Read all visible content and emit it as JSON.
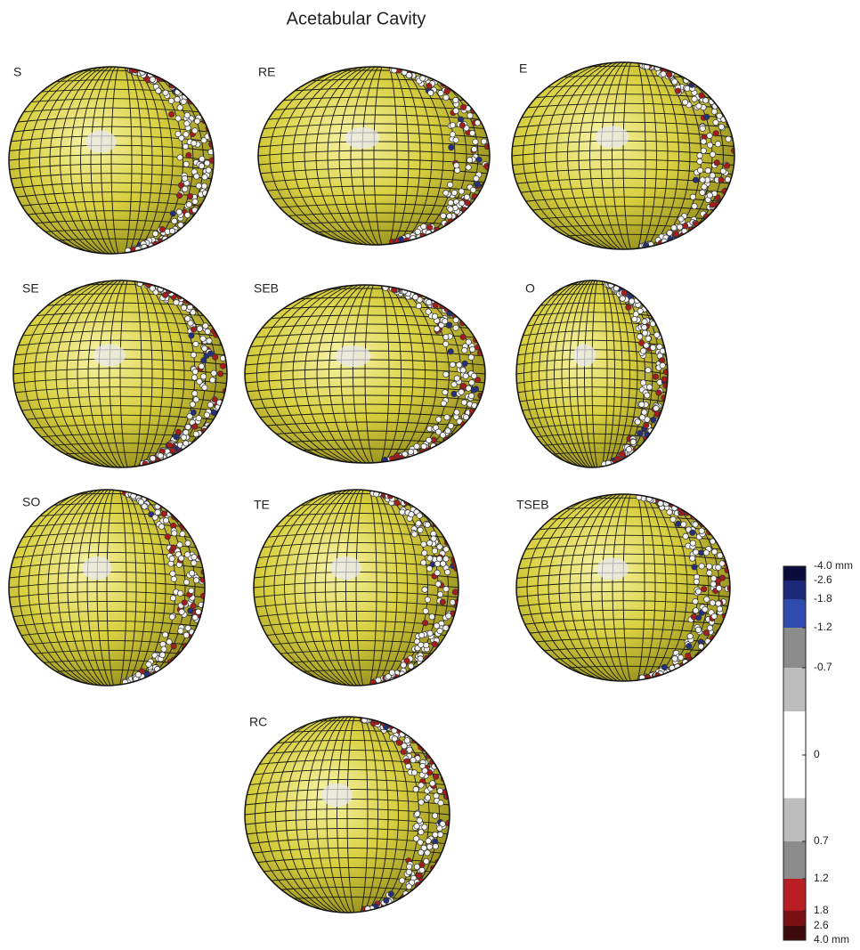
{
  "title": "Acetabular Cavity",
  "panels": [
    {
      "label": "S"
    },
    {
      "label": "RE"
    },
    {
      "label": "E"
    },
    {
      "label": "SE"
    },
    {
      "label": "SEB"
    },
    {
      "label": "O"
    },
    {
      "label": "SO"
    },
    {
      "label": "TE"
    },
    {
      "label": "TSEB"
    },
    {
      "label": "RC"
    }
  ],
  "colorbar": {
    "ticks": [
      {
        "value": -4.0,
        "label": "-4.0 mm"
      },
      {
        "value": -2.6,
        "label": "-2.6"
      },
      {
        "value": -1.8,
        "label": "-1.8"
      },
      {
        "value": -1.2,
        "label": "-1.2"
      },
      {
        "value": -0.7,
        "label": "-0.7"
      },
      0,
      {
        "value": 0.7,
        "label": "0.7"
      },
      {
        "value": 1.2,
        "label": "1.2"
      },
      {
        "value": 1.8,
        "label": "1.8"
      },
      {
        "value": 2.6,
        "label": "2.6"
      },
      {
        "value": 4.0,
        "label": "4.0 mm"
      }
    ],
    "colors": [
      "#0c0c3c",
      "#1c2878",
      "#2f4bb0",
      "#8c8c8c",
      "#bdbdbd",
      "#bdbdbd",
      "#8c8c8c",
      "#b81e24",
      "#7a1014",
      "#3c0a0a"
    ]
  }
}
